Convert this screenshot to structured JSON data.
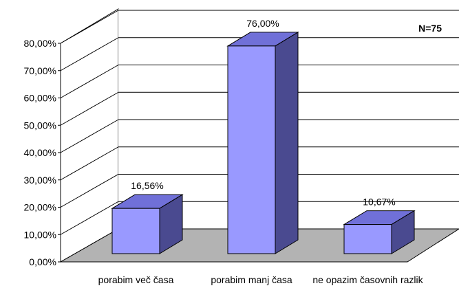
{
  "chart_data": {
    "type": "bar3d",
    "annotation": "N=75",
    "categories": [
      "porabim več časa",
      "porabim manj časa",
      "ne opazim časovnih razlik"
    ],
    "values": [
      16.56,
      76,
      10.67
    ],
    "value_labels": [
      "16,56%",
      "76,00%",
      "10,67%"
    ],
    "color": "#9999ff",
    "ylim": [
      0,
      80
    ],
    "yticks": [
      {
        "value": 0,
        "label": "0,00%"
      },
      {
        "value": 10,
        "label": "10,00%"
      },
      {
        "value": 20,
        "label": "20,00%"
      },
      {
        "value": 30,
        "label": "30,00%"
      },
      {
        "value": 40,
        "label": "40,00%"
      },
      {
        "value": 50,
        "label": "50,00%"
      },
      {
        "value": 60,
        "label": "60,00%"
      },
      {
        "value": 70,
        "label": "70,00%"
      },
      {
        "value": 80,
        "label": "80,00%"
      }
    ],
    "grid": true
  }
}
